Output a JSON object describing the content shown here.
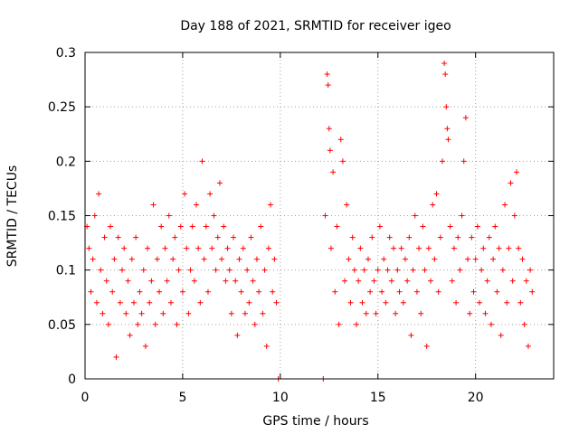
{
  "chart_data": {
    "type": "scatter",
    "title": "Day 188 of 2021, SRMTID for receiver igeo",
    "xlabel": "GPS time / hours",
    "ylabel": "SRMTID / TECUs",
    "xlim": [
      0,
      24
    ],
    "ylim": [
      0,
      0.3
    ],
    "x_ticks": [
      0,
      5,
      10,
      15,
      20
    ],
    "x_tick_labels": [
      "0",
      "5",
      "10",
      "15",
      "20"
    ],
    "y_ticks": [
      0,
      0.05,
      0.1,
      0.15,
      0.2,
      0.25,
      0.3
    ],
    "y_tick_labels": [
      "0",
      "0.05",
      "0.1",
      "0.15",
      "0.2",
      "0.25",
      "0.3"
    ],
    "grid": true,
    "marker": "+",
    "color": "#ff0000",
    "series": [
      {
        "name": "SRMTID",
        "points": [
          [
            0.1,
            0.14
          ],
          [
            0.2,
            0.12
          ],
          [
            0.3,
            0.08
          ],
          [
            0.4,
            0.11
          ],
          [
            0.5,
            0.15
          ],
          [
            0.6,
            0.07
          ],
          [
            0.7,
            0.17
          ],
          [
            0.8,
            0.1
          ],
          [
            0.9,
            0.06
          ],
          [
            1.0,
            0.13
          ],
          [
            1.1,
            0.09
          ],
          [
            1.2,
            0.05
          ],
          [
            1.3,
            0.14
          ],
          [
            1.4,
            0.08
          ],
          [
            1.5,
            0.11
          ],
          [
            1.6,
            0.02
          ],
          [
            1.7,
            0.13
          ],
          [
            1.8,
            0.07
          ],
          [
            1.9,
            0.1
          ],
          [
            2.0,
            0.12
          ],
          [
            2.1,
            0.06
          ],
          [
            2.2,
            0.09
          ],
          [
            2.3,
            0.04
          ],
          [
            2.4,
            0.11
          ],
          [
            2.5,
            0.07
          ],
          [
            2.6,
            0.13
          ],
          [
            2.7,
            0.05
          ],
          [
            2.8,
            0.08
          ],
          [
            2.9,
            0.06
          ],
          [
            3.0,
            0.1
          ],
          [
            3.1,
            0.03
          ],
          [
            3.2,
            0.12
          ],
          [
            3.3,
            0.07
          ],
          [
            3.4,
            0.09
          ],
          [
            3.5,
            0.16
          ],
          [
            3.6,
            0.05
          ],
          [
            3.7,
            0.11
          ],
          [
            3.8,
            0.08
          ],
          [
            3.9,
            0.14
          ],
          [
            4.0,
            0.06
          ],
          [
            4.1,
            0.12
          ],
          [
            4.2,
            0.09
          ],
          [
            4.3,
            0.15
          ],
          [
            4.4,
            0.07
          ],
          [
            4.5,
            0.11
          ],
          [
            4.6,
            0.13
          ],
          [
            4.7,
            0.05
          ],
          [
            4.8,
            0.1
          ],
          [
            4.9,
            0.14
          ],
          [
            5.0,
            0.08
          ],
          [
            5.1,
            0.17
          ],
          [
            5.2,
            0.12
          ],
          [
            5.3,
            0.06
          ],
          [
            5.4,
            0.1
          ],
          [
            5.5,
            0.14
          ],
          [
            5.6,
            0.09
          ],
          [
            5.7,
            0.16
          ],
          [
            5.8,
            0.12
          ],
          [
            5.9,
            0.07
          ],
          [
            6.0,
            0.2
          ],
          [
            6.1,
            0.11
          ],
          [
            6.2,
            0.14
          ],
          [
            6.3,
            0.08
          ],
          [
            6.4,
            0.17
          ],
          [
            6.5,
            0.12
          ],
          [
            6.6,
            0.15
          ],
          [
            6.7,
            0.1
          ],
          [
            6.8,
            0.13
          ],
          [
            6.9,
            0.18
          ],
          [
            7.0,
            0.11
          ],
          [
            7.1,
            0.14
          ],
          [
            7.2,
            0.09
          ],
          [
            7.3,
            0.12
          ],
          [
            7.4,
            0.1
          ],
          [
            7.5,
            0.06
          ],
          [
            7.6,
            0.13
          ],
          [
            7.7,
            0.09
          ],
          [
            7.8,
            0.04
          ],
          [
            7.9,
            0.11
          ],
          [
            8.0,
            0.08
          ],
          [
            8.1,
            0.12
          ],
          [
            8.2,
            0.06
          ],
          [
            8.3,
            0.1
          ],
          [
            8.4,
            0.07
          ],
          [
            8.5,
            0.13
          ],
          [
            8.6,
            0.09
          ],
          [
            8.7,
            0.05
          ],
          [
            8.8,
            0.11
          ],
          [
            8.9,
            0.08
          ],
          [
            9.0,
            0.14
          ],
          [
            9.1,
            0.06
          ],
          [
            9.2,
            0.1
          ],
          [
            9.3,
            0.03
          ],
          [
            9.4,
            0.12
          ],
          [
            9.5,
            0.16
          ],
          [
            9.6,
            0.08
          ],
          [
            9.7,
            0.11
          ],
          [
            9.8,
            0.07
          ],
          [
            9.9,
            0.0
          ],
          [
            12.2,
            0.0
          ],
          [
            12.3,
            0.15
          ],
          [
            12.4,
            0.28
          ],
          [
            12.45,
            0.27
          ],
          [
            12.5,
            0.23
          ],
          [
            12.55,
            0.21
          ],
          [
            12.6,
            0.12
          ],
          [
            12.7,
            0.19
          ],
          [
            12.8,
            0.08
          ],
          [
            12.9,
            0.14
          ],
          [
            13.0,
            0.05
          ],
          [
            13.1,
            0.22
          ],
          [
            13.2,
            0.2
          ],
          [
            13.3,
            0.09
          ],
          [
            13.4,
            0.16
          ],
          [
            13.5,
            0.11
          ],
          [
            13.6,
            0.07
          ],
          [
            13.7,
            0.13
          ],
          [
            13.8,
            0.1
          ],
          [
            13.9,
            0.05
          ],
          [
            14.0,
            0.09
          ],
          [
            14.1,
            0.12
          ],
          [
            14.2,
            0.07
          ],
          [
            14.3,
            0.1
          ],
          [
            14.4,
            0.06
          ],
          [
            14.5,
            0.11
          ],
          [
            14.6,
            0.08
          ],
          [
            14.7,
            0.13
          ],
          [
            14.8,
            0.09
          ],
          [
            14.9,
            0.06
          ],
          [
            15.0,
            0.1
          ],
          [
            15.1,
            0.14
          ],
          [
            15.2,
            0.08
          ],
          [
            15.3,
            0.11
          ],
          [
            15.4,
            0.07
          ],
          [
            15.5,
            0.1
          ],
          [
            15.6,
            0.13
          ],
          [
            15.7,
            0.09
          ],
          [
            15.8,
            0.12
          ],
          [
            15.9,
            0.06
          ],
          [
            16.0,
            0.1
          ],
          [
            16.1,
            0.08
          ],
          [
            16.2,
            0.12
          ],
          [
            16.3,
            0.07
          ],
          [
            16.4,
            0.11
          ],
          [
            16.5,
            0.09
          ],
          [
            16.6,
            0.13
          ],
          [
            16.7,
            0.04
          ],
          [
            16.8,
            0.1
          ],
          [
            16.9,
            0.15
          ],
          [
            17.0,
            0.08
          ],
          [
            17.1,
            0.12
          ],
          [
            17.2,
            0.06
          ],
          [
            17.3,
            0.14
          ],
          [
            17.4,
            0.1
          ],
          [
            17.5,
            0.03
          ],
          [
            17.6,
            0.12
          ],
          [
            17.7,
            0.09
          ],
          [
            17.8,
            0.16
          ],
          [
            17.9,
            0.11
          ],
          [
            18.0,
            0.17
          ],
          [
            18.1,
            0.08
          ],
          [
            18.2,
            0.13
          ],
          [
            18.3,
            0.2
          ],
          [
            18.4,
            0.29
          ],
          [
            18.45,
            0.28
          ],
          [
            18.5,
            0.25
          ],
          [
            18.55,
            0.23
          ],
          [
            18.6,
            0.22
          ],
          [
            18.7,
            0.14
          ],
          [
            18.8,
            0.09
          ],
          [
            18.9,
            0.12
          ],
          [
            19.0,
            0.07
          ],
          [
            19.1,
            0.13
          ],
          [
            19.2,
            0.1
          ],
          [
            19.3,
            0.15
          ],
          [
            19.4,
            0.2
          ],
          [
            19.5,
            0.24
          ],
          [
            19.6,
            0.11
          ],
          [
            19.7,
            0.06
          ],
          [
            19.8,
            0.13
          ],
          [
            19.9,
            0.08
          ],
          [
            20.0,
            0.11
          ],
          [
            20.1,
            0.14
          ],
          [
            20.2,
            0.07
          ],
          [
            20.3,
            0.1
          ],
          [
            20.4,
            0.12
          ],
          [
            20.5,
            0.06
          ],
          [
            20.6,
            0.09
          ],
          [
            20.7,
            0.13
          ],
          [
            20.8,
            0.05
          ],
          [
            20.9,
            0.11
          ],
          [
            21.0,
            0.14
          ],
          [
            21.1,
            0.08
          ],
          [
            21.2,
            0.12
          ],
          [
            21.3,
            0.04
          ],
          [
            21.4,
            0.1
          ],
          [
            21.5,
            0.16
          ],
          [
            21.6,
            0.07
          ],
          [
            21.7,
            0.12
          ],
          [
            21.8,
            0.18
          ],
          [
            21.9,
            0.09
          ],
          [
            22.0,
            0.15
          ],
          [
            22.1,
            0.19
          ],
          [
            22.2,
            0.12
          ],
          [
            22.3,
            0.07
          ],
          [
            22.4,
            0.11
          ],
          [
            22.5,
            0.05
          ],
          [
            22.6,
            0.09
          ],
          [
            22.7,
            0.03
          ],
          [
            22.8,
            0.1
          ],
          [
            22.9,
            0.08
          ]
        ]
      }
    ]
  }
}
